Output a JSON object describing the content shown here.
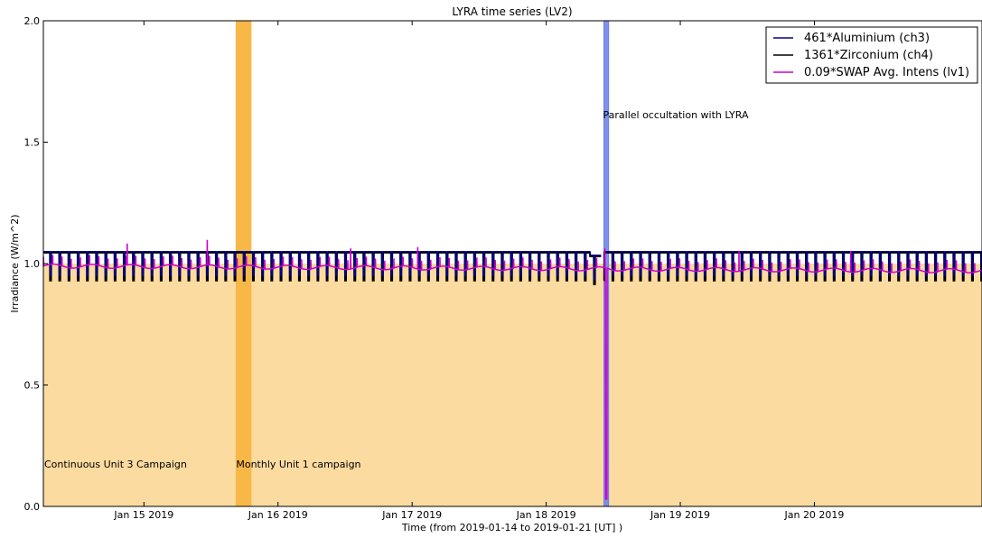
{
  "chart_data": {
    "type": "line",
    "title": "LYRA time series (LV2)",
    "xlabel": "Time (from 2019-01-14 to 2019-01-21 [UT] )",
    "ylabel": "Irradiance (W/m^2)",
    "xlim": [
      "2019-01-14T06:00",
      "2019-01-21T06:00"
    ],
    "ylim": [
      0.0,
      2.0
    ],
    "x_ticks": [
      {
        "t": "2019-01-15T00:00",
        "label": "Jan 15 2019"
      },
      {
        "t": "2019-01-16T00:00",
        "label": "Jan 16 2019"
      },
      {
        "t": "2019-01-17T00:00",
        "label": "Jan 17 2019"
      },
      {
        "t": "2019-01-18T00:00",
        "label": "Jan 18 2019"
      },
      {
        "t": "2019-01-19T00:00",
        "label": "Jan 19 2019"
      },
      {
        "t": "2019-01-20T00:00",
        "label": "Jan 20 2019"
      }
    ],
    "y_ticks": [
      {
        "v": 0.0,
        "label": "0.0"
      },
      {
        "v": 0.5,
        "label": "0.5"
      },
      {
        "v": 1.0,
        "label": "1.0"
      },
      {
        "v": 1.5,
        "label": "1.5"
      },
      {
        "v": 2.0,
        "label": "2.0"
      }
    ],
    "legend_position": "top-right",
    "grid": false,
    "series": [
      {
        "name": "461*Aluminium (ch3)",
        "color": "#00008b",
        "baseline": 1.05,
        "dip": 0.95
      },
      {
        "name": "1361*Zirconium (ch4)",
        "color": "#000000",
        "baseline": 1.045,
        "dip": 0.93
      },
      {
        "name": "0.09*SWAP Avg. Intens (lv1)",
        "color": "#cc00cc",
        "baseline": 0.99,
        "min": 0.03
      }
    ],
    "periodic_dips": {
      "period_hours": 1.65
    },
    "data_gap": {
      "start": "2019-01-18T09:50",
      "end": "2019-01-18T10:20"
    },
    "spans": [
      {
        "start": "2019-01-14T06:00",
        "end": "2019-01-21T06:00",
        "top": 1.0,
        "color": "#fcdba0",
        "label": "Continuous Unit 3 Campaign"
      },
      {
        "start": "2019-01-15T16:30",
        "end": "2019-01-15T19:10",
        "top": 2.0,
        "color": "#f8b848",
        "label": "Monthly Unit 1 campaign"
      },
      {
        "start": "2019-01-18T10:20",
        "end": "2019-01-18T11:10",
        "top": 2.0,
        "color": "#6a7ee8",
        "label": "Parallel occultation with LYRA"
      }
    ],
    "spikes": [
      {
        "t": "2019-01-14T21:00",
        "v": 1.08
      },
      {
        "t": "2019-01-15T11:20",
        "v": 1.095
      },
      {
        "t": "2019-01-16T13:00",
        "v": 1.06
      },
      {
        "t": "2019-01-17T01:00",
        "v": 1.065
      },
      {
        "t": "2019-01-18T10:30",
        "v": 1.06
      },
      {
        "t": "2019-01-19T10:30",
        "v": 1.05
      },
      {
        "t": "2019-01-20T06:30",
        "v": 1.05
      }
    ],
    "occultation_dip": {
      "t": "2019-01-18T10:45",
      "v": 0.03
    }
  }
}
